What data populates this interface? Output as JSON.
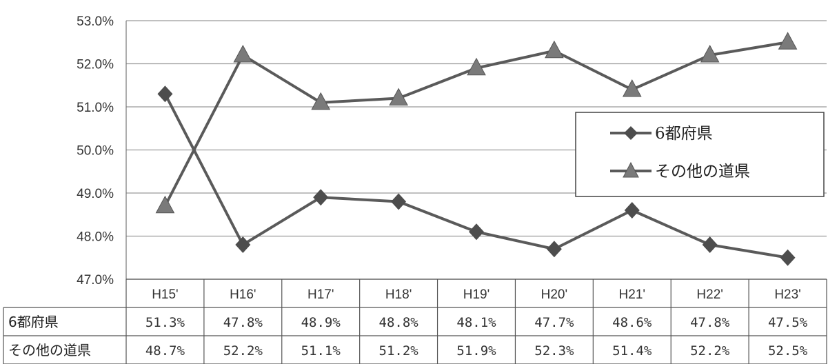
{
  "chart_data": {
    "type": "line",
    "title": "",
    "xlabel": "",
    "ylabel": "",
    "categories": [
      "H15'",
      "H16'",
      "H17'",
      "H18'",
      "H19'",
      "H20'",
      "H21'",
      "H22'",
      "H23'"
    ],
    "ylim": [
      47.0,
      53.0
    ],
    "yticks": [
      "47.0%",
      "48.0%",
      "49.0%",
      "50.0%",
      "51.0%",
      "52.0%",
      "53.0%"
    ],
    "grid": true,
    "legend_position": "right",
    "series": [
      {
        "name": "6都府県",
        "marker": "diamond",
        "color": "#5a5a5a",
        "values": [
          51.3,
          47.8,
          48.9,
          48.8,
          48.1,
          47.7,
          48.6,
          47.8,
          47.5
        ],
        "labels": [
          "51.3%",
          "47.8%",
          "48.9%",
          "48.8%",
          "48.1%",
          "47.7%",
          "48.6%",
          "47.8%",
          "47.5%"
        ]
      },
      {
        "name": "その他の道県",
        "marker": "triangle",
        "color": "#5a5a5a",
        "values": [
          48.7,
          52.2,
          51.1,
          51.2,
          51.9,
          52.3,
          51.4,
          52.2,
          52.5
        ],
        "labels": [
          "48.7%",
          "52.2%",
          "51.1%",
          "51.2%",
          "51.9%",
          "52.3%",
          "51.4%",
          "52.2%",
          "52.5%"
        ]
      }
    ],
    "table": {
      "row_labels": [
        "6都府県",
        "その他の道県"
      ]
    }
  }
}
